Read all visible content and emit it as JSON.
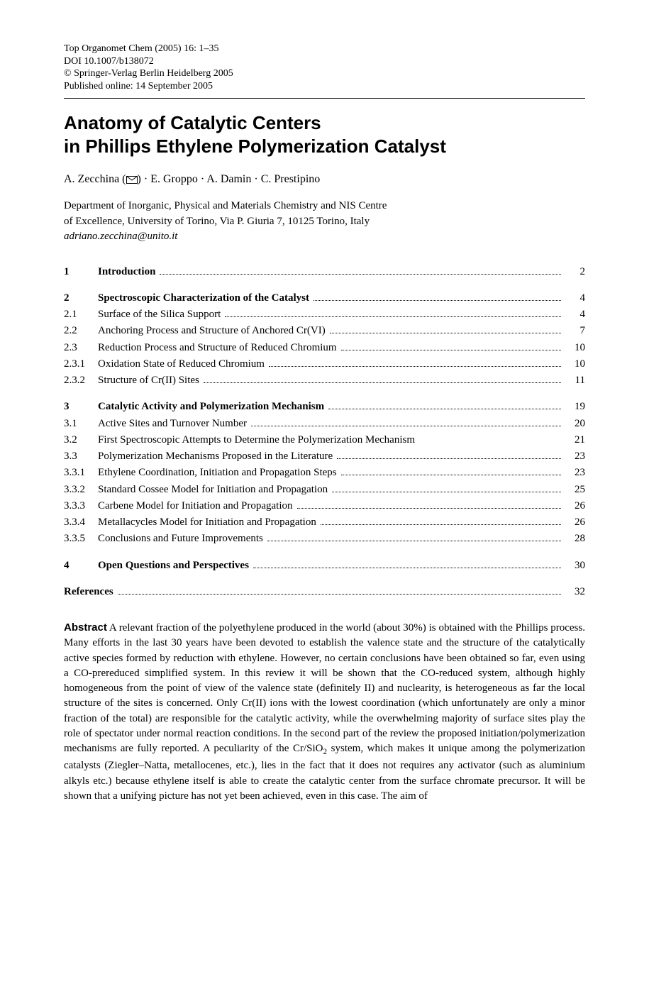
{
  "meta": {
    "line1": "Top Organomet Chem (2005) 16: 1–35",
    "line2": "DOI 10.1007/b138072",
    "line3": "© Springer-Verlag Berlin Heidelberg 2005",
    "line4": "Published online: 14 September 2005"
  },
  "title": {
    "line1": "Anatomy of Catalytic Centers",
    "line2": "in Phillips Ethylene Polymerization Catalyst"
  },
  "authors": {
    "a1": "A. Zecchina (",
    "a1_after": ") · E. Groppo · A. Damin · C. Prestipino"
  },
  "affiliation": {
    "line1": "Department of Inorganic, Physical and Materials Chemistry and NIS Centre",
    "line2": "of Excellence, University of Torino, Via P. Giuria 7, 10125 Torino, Italy"
  },
  "email": "adriano.zecchina@unito.it",
  "toc": {
    "groups": [
      {
        "rows": [
          {
            "num": "1",
            "label": "Introduction",
            "page": "2",
            "bold": true,
            "dots": true
          }
        ]
      },
      {
        "rows": [
          {
            "num": "2",
            "label": "Spectroscopic Characterization of the Catalyst",
            "page": "4",
            "bold": true,
            "dots": true
          },
          {
            "num": "2.1",
            "label": "Surface of the Silica Support",
            "page": "4",
            "bold": false,
            "dots": true
          },
          {
            "num": "2.2",
            "label": "Anchoring Process and Structure of Anchored Cr(VI)",
            "page": "7",
            "bold": false,
            "dots": true
          },
          {
            "num": "2.3",
            "label": "Reduction Process and Structure of Reduced Chromium",
            "page": "10",
            "bold": false,
            "dots": true
          },
          {
            "num": "2.3.1",
            "label": "Oxidation State of Reduced Chromium",
            "page": "10",
            "bold": false,
            "dots": true
          },
          {
            "num": "2.3.2",
            "label": "Structure of Cr(II) Sites",
            "page": "11",
            "bold": false,
            "dots": true
          }
        ]
      },
      {
        "rows": [
          {
            "num": "3",
            "label": "Catalytic Activity and Polymerization Mechanism",
            "page": "19",
            "bold": true,
            "dots": true
          },
          {
            "num": "3.1",
            "label": "Active Sites and Turnover Number",
            "page": "20",
            "bold": false,
            "dots": true
          },
          {
            "num": "3.2",
            "label": "First Spectroscopic Attempts to Determine the Polymerization Mechanism",
            "page": "21",
            "bold": false,
            "dots": false
          },
          {
            "num": "3.3",
            "label": "Polymerization Mechanisms Proposed in the Literature",
            "page": "23",
            "bold": false,
            "dots": true
          },
          {
            "num": "3.3.1",
            "label": "Ethylene Coordination, Initiation and Propagation Steps",
            "page": "23",
            "bold": false,
            "dots": true
          },
          {
            "num": "3.3.2",
            "label": "Standard Cossee Model for Initiation and Propagation",
            "page": "25",
            "bold": false,
            "dots": true
          },
          {
            "num": "3.3.3",
            "label": "Carbene Model for Initiation and Propagation",
            "page": "26",
            "bold": false,
            "dots": true
          },
          {
            "num": "3.3.4",
            "label": "Metallacycles Model for Initiation and Propagation",
            "page": "26",
            "bold": false,
            "dots": true
          },
          {
            "num": "3.3.5",
            "label": "Conclusions and Future Improvements",
            "page": "28",
            "bold": false,
            "dots": true
          }
        ]
      },
      {
        "rows": [
          {
            "num": "4",
            "label": "Open Questions and Perspectives",
            "page": "30",
            "bold": true,
            "dots": true
          }
        ]
      },
      {
        "refs": true,
        "rows": [
          {
            "num": "",
            "label": "References",
            "page": "32",
            "bold": true,
            "dots": true
          }
        ]
      }
    ]
  },
  "abstract": {
    "label": "Abstract",
    "text_part1": "A relevant fraction of the polyethylene produced in the world (about 30%) is obtained with the Phillips process. Many efforts in the last 30 years have been devoted to establish the valence state and the structure of the catalytically active species formed by reduction with ethylene. However, no certain conclusions have been obtained so far, even using a CO-prereduced simplified system. In this review it will be shown that the CO-reduced system, although highly homogeneous from the point of view of the valence state (definitely II) and nuclearity, is heterogeneous as far the local structure of the sites is concerned. Only Cr(II) ions with the lowest coordination (which unfortunately are only a minor fraction of the total) are responsible for the catalytic activity, while the overwhelming majority of surface sites play the role of spectator under normal reaction conditions. In the second part of the review the proposed initiation/polymerization mechanisms are fully reported. A peculiarity of the Cr/SiO",
    "text_sub": "2",
    "text_part2": " system, which makes it unique among the polymerization catalysts (Ziegler–Natta, metallocenes, etc.), lies in the fact that it does not requires any activator (such as aluminium alkyls etc.) because ethylene itself is able to create the catalytic center from the surface chromate precursor. It will be shown that a unifying picture has not yet been achieved, even in this case. The aim of"
  }
}
